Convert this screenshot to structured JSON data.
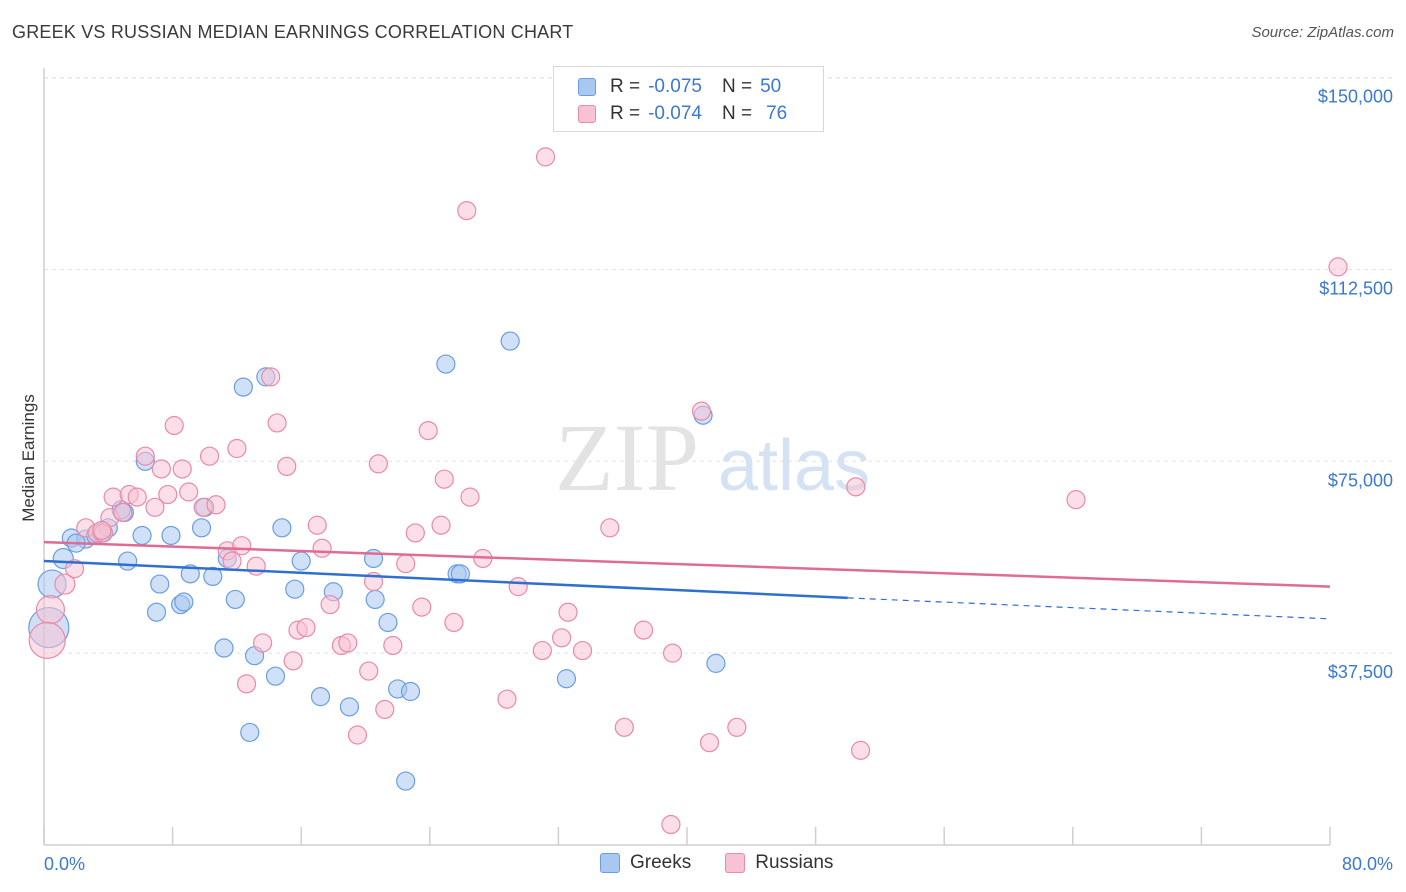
{
  "title": "GREEK VS RUSSIAN MEDIAN EARNINGS CORRELATION CHART",
  "source": "Source: ZipAtlas.com",
  "watermark": {
    "zip": "ZIP",
    "atlas": "atlas"
  },
  "legend_top": [
    {
      "r_label": "R =",
      "r_value": "-0.075",
      "n_label": "N =",
      "n_value": "50",
      "color": "#a9c8f0",
      "border": "#6a9ee0"
    },
    {
      "r_label": "R =",
      "r_value": "-0.074",
      "n_label": "N =",
      "n_value": "76",
      "color": "#f7c3d3",
      "border": "#e88aa8"
    }
  ],
  "legend_bottom": [
    {
      "label": "Greeks",
      "color": "#a9c8f0",
      "border": "#6a9ee0"
    },
    {
      "label": "Russians",
      "color": "#f7c3d3",
      "border": "#e88aa8"
    }
  ],
  "chart_data": {
    "type": "scatter",
    "ylabel": "Median Earnings",
    "xlabel": "",
    "x_tick_labels": [
      "0.0%",
      "80.0%"
    ],
    "y_tick_labels": [
      "$37,500",
      "$75,000",
      "$112,500",
      "$150,000"
    ],
    "y_ticks": [
      37500,
      75000,
      112500,
      150000
    ],
    "xlim": [
      0,
      80
    ],
    "ylim": [
      0,
      155000
    ],
    "grid": true,
    "series": [
      {
        "name": "Greeks",
        "color": "#6a9ee0",
        "fill": "#a9c8f0",
        "trend": {
          "x0": 0,
          "y0": 55500,
          "x1": 50,
          "y1": 48300,
          "dash_to": 80,
          "dash_y": 44200
        },
        "points": [
          [
            0.5,
            51000,
            14
          ],
          [
            0.3,
            42500,
            20
          ],
          [
            1.2,
            56000,
            10
          ],
          [
            1.7,
            60000,
            9
          ],
          [
            2.6,
            59800,
            9
          ],
          [
            3.2,
            60500,
            9
          ],
          [
            3.6,
            61000,
            9
          ],
          [
            4.0,
            62000,
            9
          ],
          [
            5.0,
            65000,
            9
          ],
          [
            5.2,
            55500,
            9
          ],
          [
            6.1,
            60500,
            9
          ],
          [
            6.3,
            75000,
            9
          ],
          [
            7.2,
            51000,
            9
          ],
          [
            7.0,
            45500,
            9
          ],
          [
            7.9,
            60500,
            9
          ],
          [
            8.5,
            47000,
            9
          ],
          [
            8.7,
            47500,
            9
          ],
          [
            9.1,
            53000,
            9
          ],
          [
            9.8,
            62000,
            9
          ],
          [
            10.0,
            66000,
            9
          ],
          [
            10.5,
            52500,
            9
          ],
          [
            11.2,
            38500,
            9
          ],
          [
            11.4,
            56000,
            9
          ],
          [
            11.9,
            48000,
            9
          ],
          [
            12.4,
            89500,
            9
          ],
          [
            13.1,
            37000,
            9
          ],
          [
            13.8,
            91500,
            9
          ],
          [
            14.4,
            33000,
            9
          ],
          [
            14.8,
            62000,
            9
          ],
          [
            15.6,
            50000,
            9
          ],
          [
            16.0,
            55500,
            9
          ],
          [
            17.2,
            29000,
            9
          ],
          [
            18.0,
            49500,
            9
          ],
          [
            19.0,
            27000,
            9
          ],
          [
            20.5,
            56000,
            9
          ],
          [
            20.6,
            48000,
            9
          ],
          [
            21.4,
            43500,
            9
          ],
          [
            22.0,
            30500,
            9
          ],
          [
            22.8,
            30000,
            9
          ],
          [
            25.0,
            94000,
            9
          ],
          [
            25.7,
            53000,
            9
          ],
          [
            25.9,
            53000,
            9
          ],
          [
            29.0,
            98500,
            9
          ],
          [
            32.5,
            32500,
            9
          ],
          [
            41.0,
            84000,
            9
          ],
          [
            41.8,
            35500,
            9
          ],
          [
            12.8,
            22000,
            9
          ],
          [
            22.5,
            12500,
            9
          ],
          [
            4.8,
            65500,
            9
          ],
          [
            2.0,
            59000,
            9
          ]
        ]
      },
      {
        "name": "Russians",
        "color": "#e88aa8",
        "fill": "#f7c3d3",
        "trend": {
          "x0": 0,
          "y0": 59200,
          "x1": 80,
          "y1": 50500
        },
        "points": [
          [
            0.4,
            46000,
            14
          ],
          [
            0.2,
            40000,
            18
          ],
          [
            1.3,
            51000,
            10
          ],
          [
            1.9,
            54000,
            9
          ],
          [
            2.6,
            62000,
            9
          ],
          [
            3.3,
            61000,
            9
          ],
          [
            3.7,
            61000,
            9
          ],
          [
            4.1,
            64000,
            9
          ],
          [
            4.3,
            68000,
            9
          ],
          [
            4.9,
            65000,
            9
          ],
          [
            5.3,
            68500,
            9
          ],
          [
            5.8,
            68000,
            9
          ],
          [
            6.3,
            76000,
            9
          ],
          [
            6.9,
            66000,
            9
          ],
          [
            7.3,
            73500,
            9
          ],
          [
            7.7,
            68500,
            9
          ],
          [
            8.1,
            82000,
            9
          ],
          [
            8.6,
            73500,
            9
          ],
          [
            9.0,
            69000,
            9
          ],
          [
            9.9,
            66000,
            9
          ],
          [
            10.3,
            76000,
            9
          ],
          [
            10.7,
            66500,
            9
          ],
          [
            11.4,
            57500,
            9
          ],
          [
            11.7,
            55500,
            9
          ],
          [
            12.0,
            77500,
            9
          ],
          [
            12.3,
            58500,
            9
          ],
          [
            12.6,
            31500,
            9
          ],
          [
            13.2,
            54500,
            9
          ],
          [
            13.6,
            39500,
            9
          ],
          [
            14.1,
            91500,
            9
          ],
          [
            14.5,
            82500,
            9
          ],
          [
            15.1,
            74000,
            9
          ],
          [
            15.5,
            36000,
            9
          ],
          [
            15.8,
            42000,
            9
          ],
          [
            16.3,
            42500,
            9
          ],
          [
            17.0,
            62500,
            9
          ],
          [
            17.3,
            58000,
            9
          ],
          [
            17.8,
            47000,
            9
          ],
          [
            18.5,
            39000,
            9
          ],
          [
            18.9,
            39500,
            9
          ],
          [
            19.5,
            21500,
            9
          ],
          [
            20.2,
            34000,
            9
          ],
          [
            20.5,
            51500,
            9
          ],
          [
            20.8,
            74500,
            9
          ],
          [
            21.2,
            26500,
            9
          ],
          [
            21.7,
            39000,
            9
          ],
          [
            22.5,
            55000,
            9
          ],
          [
            23.1,
            61000,
            9
          ],
          [
            23.5,
            46500,
            9
          ],
          [
            23.9,
            81000,
            9
          ],
          [
            24.7,
            62500,
            9
          ],
          [
            24.9,
            71500,
            9
          ],
          [
            25.5,
            43500,
            9
          ],
          [
            26.5,
            68000,
            9
          ],
          [
            26.3,
            124000,
            9
          ],
          [
            27.3,
            56000,
            9
          ],
          [
            28.8,
            28500,
            9
          ],
          [
            29.5,
            50500,
            9
          ],
          [
            31.0,
            38000,
            9
          ],
          [
            31.2,
            134500,
            9
          ],
          [
            32.2,
            40500,
            9
          ],
          [
            32.6,
            45500,
            9
          ],
          [
            33.5,
            38000,
            9
          ],
          [
            35.2,
            62000,
            9
          ],
          [
            36.1,
            23000,
            9
          ],
          [
            37.3,
            42000,
            9
          ],
          [
            39.1,
            37500,
            9
          ],
          [
            39.0,
            4000,
            9
          ],
          [
            40.9,
            84800,
            9
          ],
          [
            41.4,
            20000,
            9
          ],
          [
            43.1,
            23000,
            9
          ],
          [
            50.5,
            70000,
            9
          ],
          [
            50.8,
            18500,
            9
          ],
          [
            64.2,
            67500,
            9
          ],
          [
            80.5,
            113000,
            9
          ],
          [
            3.6,
            61500,
            9
          ]
        ]
      }
    ]
  }
}
